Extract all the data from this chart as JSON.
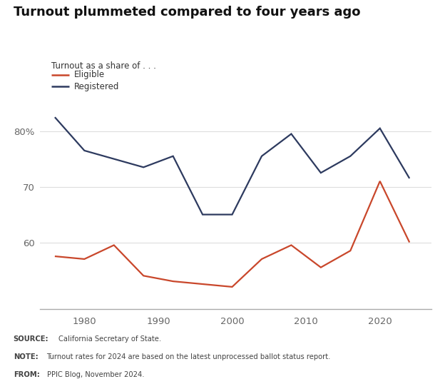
{
  "title": "Turnout plummeted compared to four years ago",
  "legend_title": "Turnout as a share of . . .",
  "legend_eligible": "Eligible",
  "legend_registered": "Registered",
  "years": [
    1976,
    1980,
    1984,
    1988,
    1992,
    1996,
    2000,
    2004,
    2008,
    2012,
    2016,
    2020,
    2024
  ],
  "eligible": [
    57.5,
    57.0,
    59.5,
    54.0,
    53.0,
    52.5,
    52.0,
    57.0,
    59.5,
    55.5,
    58.5,
    71.0,
    60.0
  ],
  "registered": [
    82.5,
    76.5,
    75.0,
    73.5,
    75.5,
    65.0,
    65.0,
    75.5,
    79.5,
    72.5,
    75.5,
    80.5,
    71.5
  ],
  "eligible_color": "#c9472b",
  "registered_color": "#2d3a5f",
  "ylim_min": 48,
  "ylim_max": 87,
  "yticks": [
    60,
    70,
    80
  ],
  "ytick_labels": [
    "60",
    "70",
    "80%"
  ],
  "xticks": [
    1980,
    1990,
    2000,
    2010,
    2020
  ],
  "background_color": "#ffffff",
  "footer_background": "#eeeeee",
  "line_width": 1.6
}
